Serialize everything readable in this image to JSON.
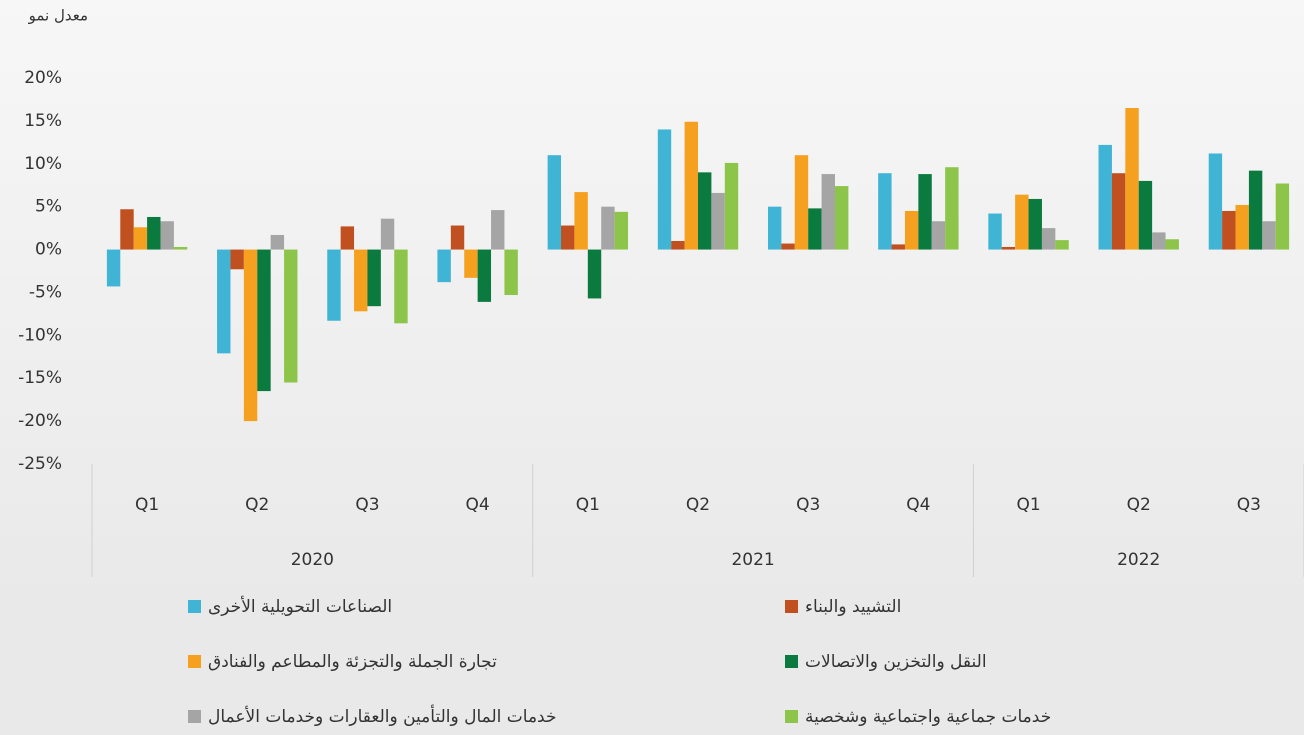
{
  "chart_data": {
    "type": "bar",
    "y_label": "معدل نمو",
    "groups": [
      {
        "name": "2020",
        "categories": [
          "Q1",
          "Q2",
          "Q3",
          "Q4"
        ]
      },
      {
        "name": "2021",
        "categories": [
          "Q1",
          "Q2",
          "Q3",
          "Q4"
        ]
      },
      {
        "name": "2022",
        "categories": [
          "Q1",
          "Q2",
          "Q3"
        ]
      }
    ],
    "series": [
      {
        "name": "الصناعات التحويلية الأخرى",
        "color": "#3fb4d4",
        "values": [
          -4.3,
          -12.1,
          -8.3,
          -3.8,
          11.0,
          14.0,
          5.0,
          8.9,
          4.2,
          12.2,
          11.2
        ]
      },
      {
        "name": "التشييد والبناء",
        "color": "#c0501f",
        "values": [
          4.7,
          -2.3,
          2.7,
          2.8,
          2.8,
          1.0,
          0.7,
          0.6,
          0.3,
          8.9,
          4.5
        ]
      },
      {
        "name": "تجارة الجملة والتجزئة والمطاعم والفنادق",
        "color": "#f5a11f",
        "values": [
          2.6,
          -20.0,
          -7.2,
          -3.3,
          6.7,
          14.9,
          11.0,
          4.5,
          6.4,
          16.5,
          5.2
        ]
      },
      {
        "name": "النقل والتخزين والاتصالات",
        "color": "#0a7a3f",
        "values": [
          3.8,
          -16.5,
          -6.6,
          -6.1,
          -5.7,
          9.0,
          4.8,
          8.8,
          5.9,
          8.0,
          9.2
        ]
      },
      {
        "name": "خدمات المال والتأمين والعقارات وخدمات الأعمال",
        "color": "#a5a5a5",
        "values": [
          3.3,
          1.7,
          3.6,
          4.6,
          5.0,
          6.6,
          8.8,
          3.3,
          2.5,
          2.0,
          3.3
        ]
      },
      {
        "name": "خدمات جماعية واجتماعية وشخصية",
        "color": "#8cc54a",
        "values": [
          0.3,
          -15.5,
          -8.6,
          -5.3,
          4.4,
          10.1,
          7.4,
          9.6,
          1.1,
          1.2,
          7.7
        ]
      }
    ],
    "ylim": [
      -25,
      20
    ],
    "yticks": [
      {
        "value": -25,
        "label": "-25%"
      },
      {
        "value": -20,
        "label": "-20%"
      },
      {
        "value": -15,
        "label": "-15%"
      },
      {
        "value": -10,
        "label": "-10%"
      },
      {
        "value": -5,
        "label": "-5%"
      },
      {
        "value": 0,
        "label": "0%"
      },
      {
        "value": 5,
        "label": "5%"
      },
      {
        "value": 10,
        "label": "10%"
      },
      {
        "value": 15,
        "label": "15%"
      },
      {
        "value": 20,
        "label": "20%"
      }
    ],
    "grid": false
  }
}
